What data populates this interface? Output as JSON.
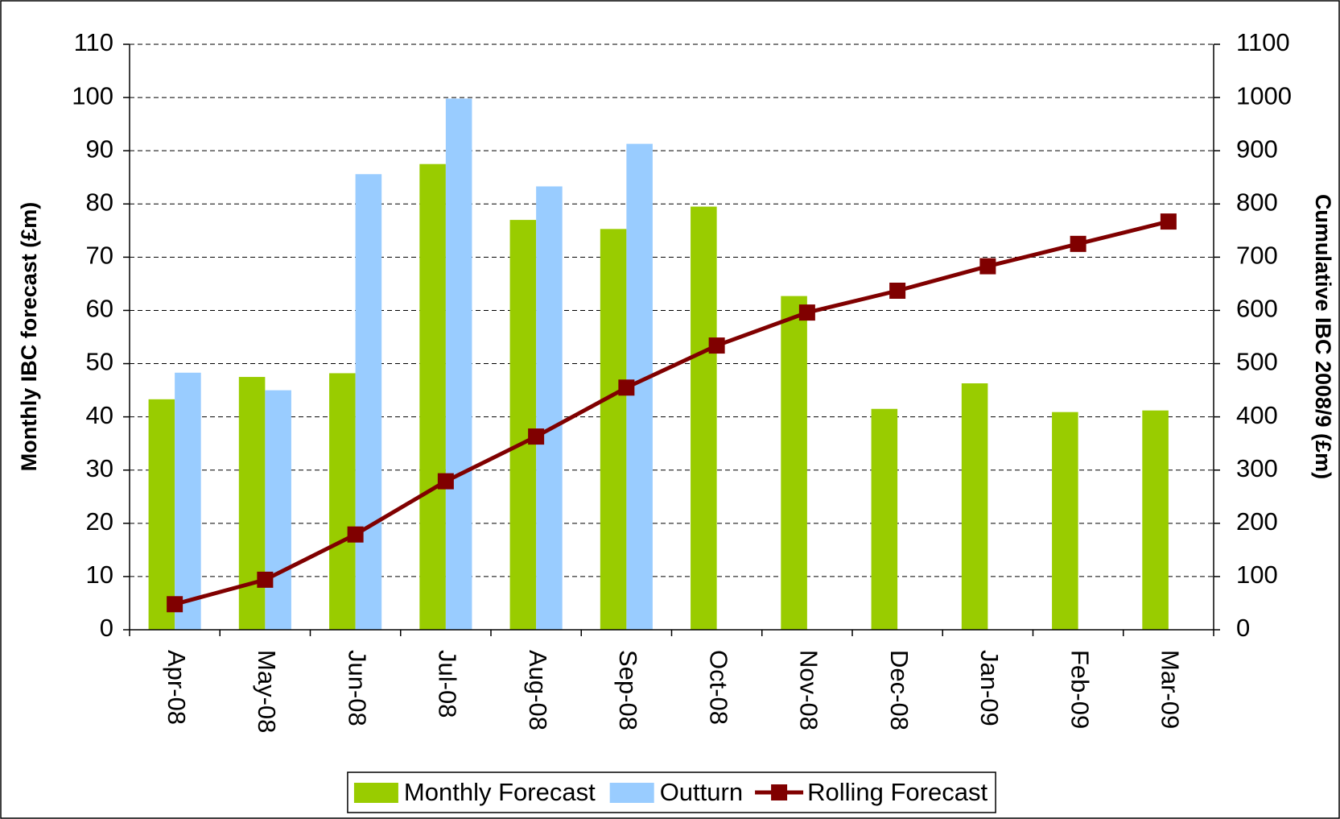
{
  "chart_data": {
    "type": "bar",
    "y_label": "Monthly IBC forecast (£m)",
    "y2_label": "Cumulative IBC 2008/9 (£m)",
    "categories": [
      "Apr-08",
      "May-08",
      "Jun-08",
      "Jul-08",
      "Aug-08",
      "Sep-08",
      "Oct-08",
      "Nov-08",
      "Dec-08",
      "Jan-09",
      "Feb-09",
      "Mar-09"
    ],
    "series": [
      {
        "name": "Monthly Forecast",
        "type": "bar",
        "color": "#99cc00",
        "values": [
          43.3,
          47.5,
          48.2,
          87.5,
          77,
          75.3,
          79.5,
          62.7,
          41.5,
          46.3,
          40.9,
          41.2
        ]
      },
      {
        "name": "Outturn",
        "type": "bar",
        "color": "#99ccff",
        "values": [
          48.3,
          45,
          85.6,
          99.8,
          83.3,
          91.3,
          null,
          null,
          null,
          null,
          null,
          null
        ]
      },
      {
        "name": "Rolling Forecast",
        "type": "line",
        "axis": "y2",
        "color": "#800000",
        "values": [
          48,
          94,
          179,
          279,
          363,
          455,
          534,
          596,
          637,
          683,
          725,
          767
        ]
      }
    ],
    "ylim": [
      0,
      110
    ],
    "yticks": [
      0,
      10,
      20,
      30,
      40,
      50,
      60,
      70,
      80,
      90,
      100,
      110
    ],
    "y2lim": [
      0,
      1100
    ],
    "y2ticks": [
      0,
      100,
      200,
      300,
      400,
      500,
      600,
      700,
      800,
      900,
      1000,
      1100
    ],
    "grid": true,
    "legend": "bottom"
  }
}
